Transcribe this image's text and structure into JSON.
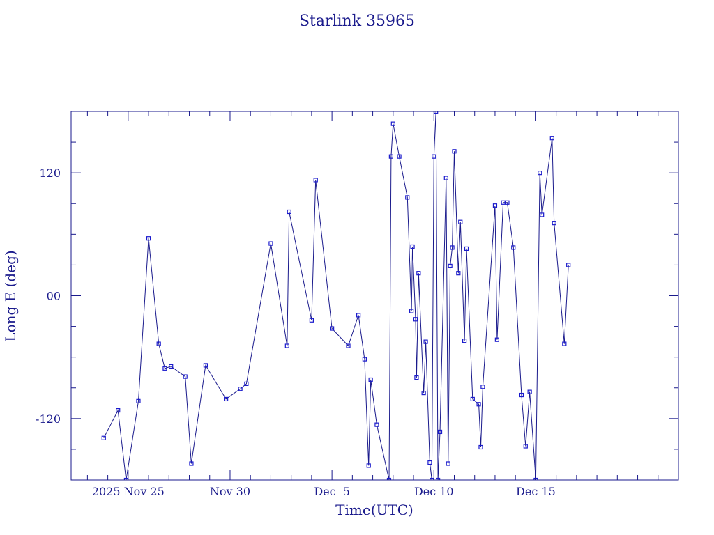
{
  "chart_data": {
    "type": "line",
    "title": "Starlink 35965",
    "xlabel": "Time(UTC)",
    "ylabel": "Long E (deg)",
    "x_axis": {
      "unit": "days",
      "range": [
        -2.8,
        27.0
      ],
      "tick_labels": [
        {
          "label": "2025 Nov 25",
          "at": 0
        },
        {
          "label": "Nov 30",
          "at": 5
        },
        {
          "label": "Dec  5",
          "at": 10
        },
        {
          "label": "Dec 10",
          "at": 15
        },
        {
          "label": "Dec 15",
          "at": 20
        }
      ],
      "reference_date": "2025 Nov 25"
    },
    "y_axis": {
      "range": [
        -180,
        180
      ],
      "ticks": [
        120,
        0,
        -120
      ],
      "tick_labels": [
        "120",
        "00",
        "-120"
      ],
      "minor_step": 30
    },
    "grid": false,
    "colors": {
      "line": "#1a1a8c",
      "marker": "#1a1acc",
      "frame": "#1a1a8c"
    },
    "series": [
      {
        "points": [
          [
            -1.2,
            -139
          ],
          [
            -0.5,
            -112
          ],
          [
            -0.1,
            -180
          ],
          [
            0.5,
            -103
          ],
          [
            1.0,
            56
          ],
          [
            1.5,
            -47
          ],
          [
            1.8,
            -71
          ],
          [
            2.1,
            -69
          ],
          [
            2.8,
            -79
          ],
          [
            3.1,
            -164
          ],
          [
            3.8,
            -68
          ],
          [
            4.8,
            -101
          ],
          [
            5.5,
            -91
          ],
          [
            5.8,
            -86
          ],
          [
            7.0,
            51
          ],
          [
            7.8,
            -49
          ],
          [
            7.9,
            82
          ],
          [
            9.0,
            -24
          ],
          [
            9.2,
            113
          ],
          [
            10.0,
            -32
          ],
          [
            10.8,
            -49
          ],
          [
            11.3,
            -19
          ],
          [
            11.6,
            -62
          ],
          [
            11.8,
            -166
          ],
          [
            11.9,
            -82
          ],
          [
            12.2,
            -126
          ],
          [
            12.8,
            -180
          ],
          [
            12.9,
            136
          ],
          [
            13.0,
            168
          ],
          [
            13.3,
            136
          ],
          [
            13.7,
            96
          ],
          [
            13.9,
            -15
          ],
          [
            13.95,
            48
          ],
          [
            14.1,
            -23
          ],
          [
            14.15,
            -80
          ],
          [
            14.25,
            22
          ],
          [
            14.5,
            -95
          ],
          [
            14.6,
            -45
          ],
          [
            14.8,
            -163
          ],
          [
            14.9,
            -180
          ],
          [
            15.0,
            136
          ],
          [
            15.1,
            180
          ],
          [
            15.2,
            -180
          ],
          [
            15.3,
            -133
          ],
          [
            15.6,
            115
          ],
          [
            15.7,
            -164
          ],
          [
            15.8,
            29
          ],
          [
            15.9,
            47
          ],
          [
            16.0,
            141
          ],
          [
            16.2,
            22
          ],
          [
            16.3,
            72
          ],
          [
            16.5,
            -44
          ],
          [
            16.6,
            46
          ],
          [
            16.9,
            -101
          ],
          [
            17.2,
            -106
          ],
          [
            17.3,
            -148
          ],
          [
            17.4,
            -89
          ],
          [
            18.0,
            88
          ],
          [
            18.1,
            -43
          ],
          [
            18.4,
            91
          ],
          [
            18.6,
            91
          ],
          [
            18.9,
            47
          ],
          [
            19.3,
            -97
          ],
          [
            19.5,
            -147
          ],
          [
            19.7,
            -94
          ],
          [
            20.0,
            -180
          ],
          [
            20.2,
            120
          ],
          [
            20.3,
            79
          ],
          [
            20.8,
            154
          ],
          [
            20.9,
            71
          ],
          [
            21.4,
            -47
          ],
          [
            21.6,
            30
          ]
        ],
        "marker": "square"
      }
    ]
  }
}
